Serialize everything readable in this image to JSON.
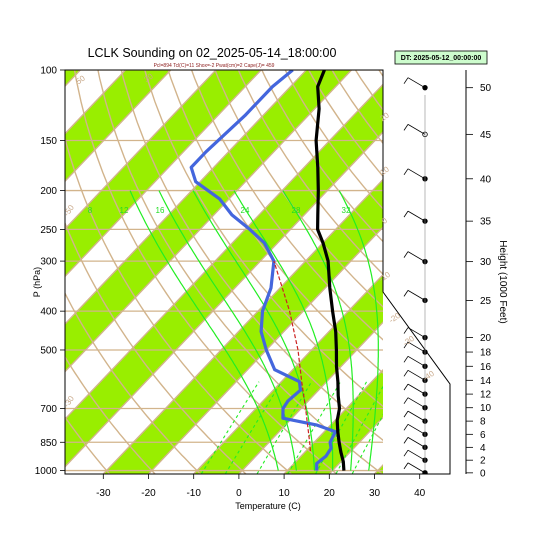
{
  "chart_data": {
    "type": "skew-t",
    "title": "LCLK Sounding on 02_2025-05-14_18:00:00",
    "subtitle": "Pcl=894 Tcl(C)=11 Shox=-2 Pwat(cm)=2 Cape(J)= 459",
    "date_box": "DT: 2025-05-12_00:00:00",
    "xlabel": "Temperature (C)",
    "ylabel": "P (hPa)",
    "y2label": "Height (1000 Feet)",
    "xlim": [
      -33,
      50
    ],
    "ylim": [
      1020,
      100
    ],
    "xticks": [
      "-30",
      "-20",
      "-10",
      "0",
      "10",
      "20",
      "30",
      "40"
    ],
    "yticks": [
      "100",
      "150",
      "200",
      "250",
      "300",
      "400",
      "500",
      "700",
      "850",
      "1000"
    ],
    "height_ticks": [
      "50",
      "45",
      "40",
      "35",
      "30",
      "25",
      "20",
      "18",
      "16",
      "14",
      "12",
      "10",
      "8",
      "6",
      "4",
      "2",
      "0"
    ],
    "moist_adiabat_labels": [
      "8",
      "12",
      "16",
      "24",
      "28",
      "32"
    ],
    "dry_adiabat_labels": [
      "50",
      "30",
      "20",
      "10",
      "0",
      "-10",
      "-20",
      "-30",
      "-40",
      "-50",
      "-30"
    ],
    "colors": {
      "isotherm_band": "#99ee00",
      "adiabat": "#d2b48c",
      "moist": "#22ee22",
      "temperature": "#000000",
      "dewpoint": "#4466dd",
      "parcel": "#cc2222"
    },
    "temperature": [
      {
        "p": 1000,
        "t": 22.5
      },
      {
        "p": 950,
        "t": 20.5
      },
      {
        "p": 900,
        "t": 18
      },
      {
        "p": 850,
        "t": 15.5
      },
      {
        "p": 800,
        "t": 13
      },
      {
        "p": 750,
        "t": 10.5
      },
      {
        "p": 700,
        "t": 8.5
      },
      {
        "p": 650,
        "t": 5.5
      },
      {
        "p": 600,
        "t": 2.5
      },
      {
        "p": 550,
        "t": -1
      },
      {
        "p": 500,
        "t": -4.5
      },
      {
        "p": 450,
        "t": -8.5
      },
      {
        "p": 400,
        "t": -13.5
      },
      {
        "p": 350,
        "t": -19
      },
      {
        "p": 300,
        "t": -25
      },
      {
        "p": 270,
        "t": -30
      },
      {
        "p": 250,
        "t": -34
      },
      {
        "p": 230,
        "t": -37
      },
      {
        "p": 200,
        "t": -42
      },
      {
        "p": 175,
        "t": -47
      },
      {
        "p": 150,
        "t": -53
      },
      {
        "p": 125,
        "t": -59
      },
      {
        "p": 110,
        "t": -64
      },
      {
        "p": 100,
        "t": -66
      }
    ],
    "dewpoint": [
      {
        "p": 1000,
        "t": 16.5
      },
      {
        "p": 960,
        "t": 15
      },
      {
        "p": 920,
        "t": 15.5
      },
      {
        "p": 880,
        "t": 15
      },
      {
        "p": 850,
        "t": 13.5
      },
      {
        "p": 800,
        "t": 12.5
      },
      {
        "p": 770,
        "t": 7
      },
      {
        "p": 740,
        "t": -2
      },
      {
        "p": 700,
        "t": -4
      },
      {
        "p": 670,
        "t": -4.5
      },
      {
        "p": 630,
        "t": -4
      },
      {
        "p": 600,
        "t": -6
      },
      {
        "p": 560,
        "t": -14
      },
      {
        "p": 500,
        "t": -20
      },
      {
        "p": 450,
        "t": -25
      },
      {
        "p": 400,
        "t": -29
      },
      {
        "p": 350,
        "t": -32
      },
      {
        "p": 300,
        "t": -37
      },
      {
        "p": 270,
        "t": -43
      },
      {
        "p": 250,
        "t": -49
      },
      {
        "p": 230,
        "t": -56
      },
      {
        "p": 210,
        "t": -62
      },
      {
        "p": 190,
        "t": -71
      },
      {
        "p": 175,
        "t": -75
      },
      {
        "p": 160,
        "t": -75
      },
      {
        "p": 130,
        "t": -74
      },
      {
        "p": 110,
        "t": -74
      },
      {
        "p": 100,
        "t": -73
      }
    ],
    "parcel": [
      {
        "p": 894,
        "t": 11
      },
      {
        "p": 850,
        "t": 9
      },
      {
        "p": 800,
        "t": 6.5
      },
      {
        "p": 700,
        "t": 1
      },
      {
        "p": 600,
        "t": -5.5
      },
      {
        "p": 500,
        "t": -13
      },
      {
        "p": 400,
        "t": -23
      },
      {
        "p": 350,
        "t": -29.5
      },
      {
        "p": 300,
        "t": -37
      }
    ]
  }
}
